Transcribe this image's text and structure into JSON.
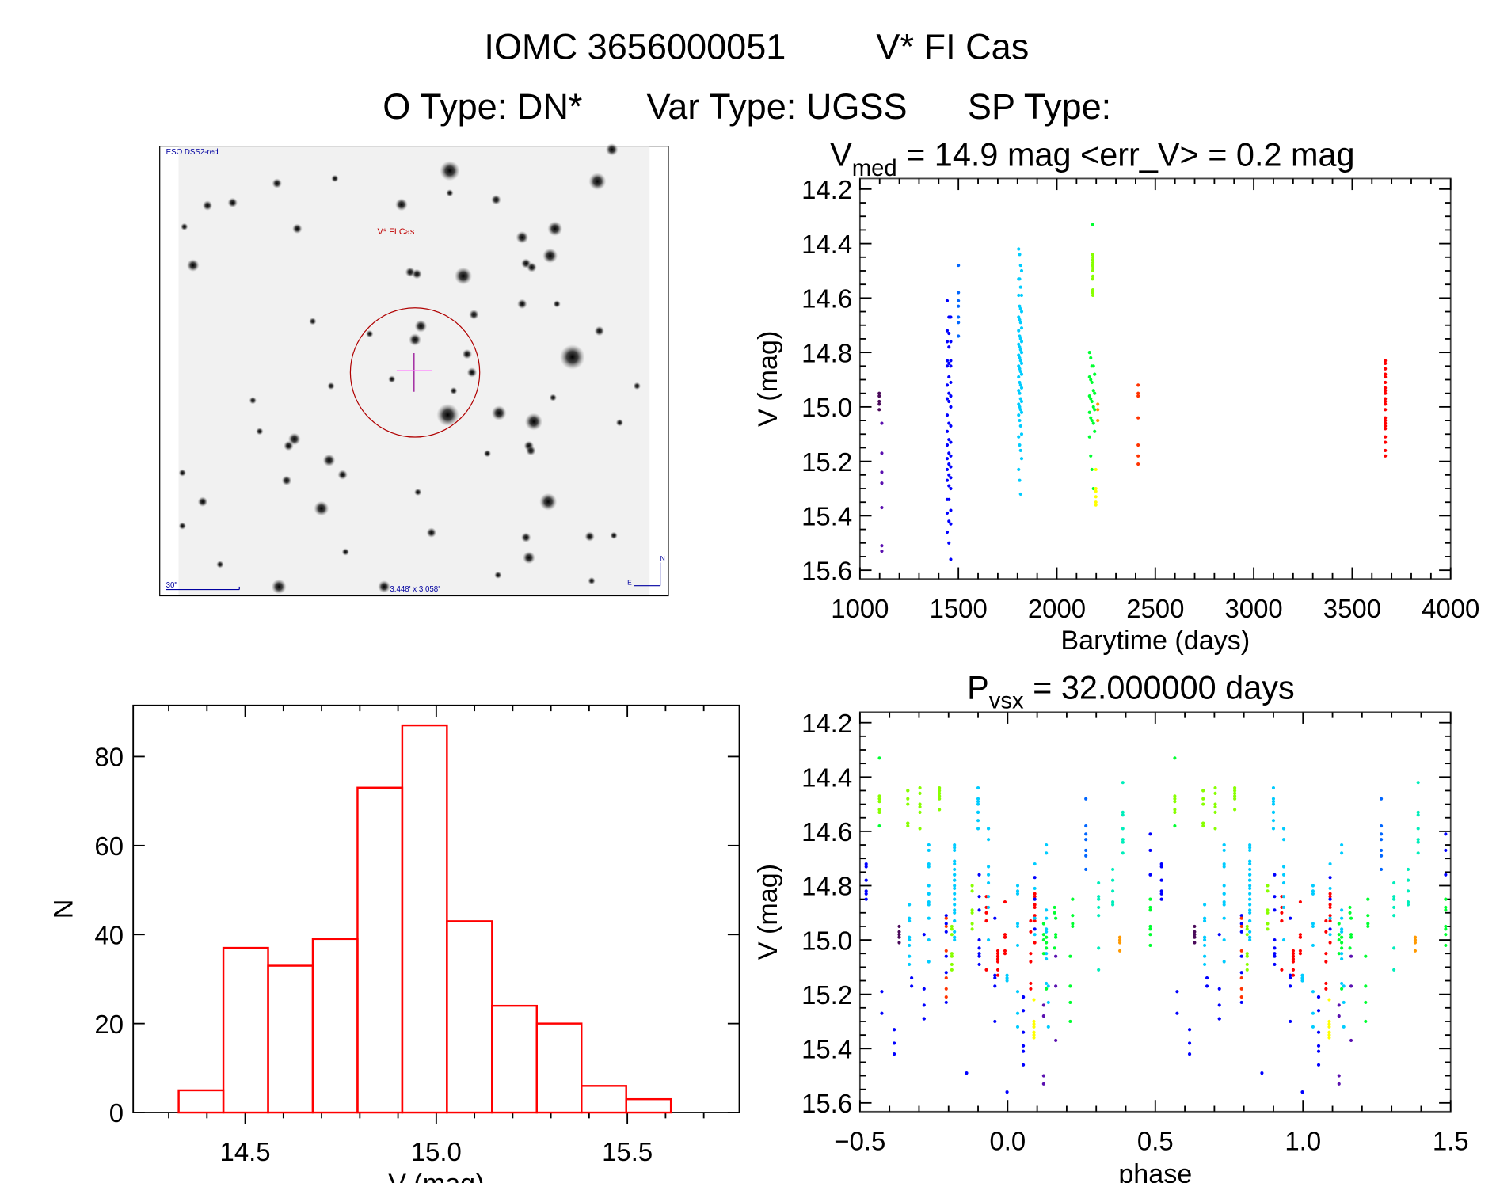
{
  "header": {
    "object_id": "IOMC 3656000051",
    "object_name": "V* FI Cas",
    "o_type": "O Type: DN*",
    "var_type": "Var Type: UGSS",
    "sp_type": "SP Type:"
  },
  "image_panel": {
    "survey_label": "ESO DSS2-red",
    "target_label": "V* FI Cas",
    "scale_label": "30\"",
    "field_size": "3.448' x 3.058'",
    "north_label": "N",
    "east_label": "E"
  },
  "palette": [
    "#4a0a5a",
    "#5a10b0",
    "#0000ff",
    "#0066ff",
    "#00ccff",
    "#00eebb",
    "#00ff30",
    "#88ff00",
    "#ffff00",
    "#ff9900",
    "#ff3300",
    "#ff0000"
  ],
  "chart_data": [
    {
      "id": "histogram",
      "type": "bar",
      "title": "",
      "xlabel": "V (mag)",
      "ylabel": "N",
      "xlim": [
        14.207,
        15.793
      ],
      "ylim": [
        0,
        91.5
      ],
      "bin_edges": [
        14.326,
        14.443,
        14.56,
        14.677,
        14.794,
        14.911,
        15.028,
        15.146,
        15.263,
        15.38,
        15.497,
        15.614
      ],
      "values": [
        5,
        37,
        33,
        39,
        73,
        87,
        43,
        24,
        20,
        6,
        3
      ],
      "bar_color": "#ff0000",
      "xticks": [
        14.5,
        15.0,
        15.5
      ],
      "xtick_labels": [
        "14.5",
        "15.0",
        "15.5"
      ],
      "yticks": [
        0,
        20,
        40,
        60,
        80
      ],
      "ytick_labels": [
        "0",
        "20",
        "40",
        "60",
        "80"
      ],
      "grid": false
    },
    {
      "id": "light-curve",
      "type": "scatter",
      "title_main": "V",
      "title_sub": "med",
      "title_rest": " = 14.9 mag <err_V> = 0.2 mag",
      "xlabel": "Barytime (days)",
      "ylabel": "V (mag)",
      "xlim": [
        1000,
        4000
      ],
      "ylim": [
        15.632,
        14.161
      ],
      "xticks": [
        1000,
        1500,
        2000,
        2500,
        3000,
        3500,
        4000
      ],
      "xtick_labels": [
        "1000",
        "1500",
        "2000",
        "2500",
        "3000",
        "3500",
        "4000"
      ],
      "yticks": [
        14.2,
        14.4,
        14.6,
        14.8,
        15.0,
        15.2,
        15.4,
        15.6
      ],
      "ytick_labels": [
        "14.2",
        "14.4",
        "14.6",
        "14.8",
        "15.0",
        "15.2",
        "15.4",
        "15.6"
      ],
      "grid": false,
      "groups": [
        {
          "color": 0,
          "t": [
            1098
          ],
          "V": [
            14.95,
            14.96,
            14.98,
            14.99,
            15.01
          ]
        },
        {
          "color": 1,
          "t": [
            1111
          ],
          "V": [
            15.06,
            15.17,
            15.24,
            15.28,
            15.37,
            15.51,
            15.53
          ]
        },
        {
          "color": 2,
          "t": [
            1443,
            1452,
            1461
          ],
          "V": [
            14.61,
            14.67,
            14.67,
            14.72,
            14.73,
            14.76,
            14.76,
            14.78,
            14.83,
            14.83,
            14.84,
            14.85,
            14.85,
            14.89,
            14.91,
            14.92,
            14.95,
            14.96,
            14.97,
            14.98,
            15.0,
            15.03,
            15.06,
            15.07,
            15.09,
            15.12,
            15.13,
            15.14,
            15.17,
            15.18,
            15.19,
            15.21,
            15.22,
            15.23,
            15.25,
            15.26,
            15.27,
            15.29,
            15.3,
            15.34,
            15.34,
            15.38,
            15.39,
            15.42,
            15.43,
            15.46,
            15.5,
            15.56
          ]
        },
        {
          "color": 3,
          "t": [
            1500
          ],
          "V": [
            14.48,
            14.58,
            14.61,
            14.63,
            14.67,
            14.69,
            14.74
          ]
        },
        {
          "color": 4,
          "t": [
            1806,
            1811,
            1816,
            1821
          ],
          "V": [
            14.42,
            14.44,
            14.48,
            14.5,
            14.53,
            14.53,
            14.56,
            14.59,
            14.59,
            14.63,
            14.64,
            14.65,
            14.67,
            14.68,
            14.69,
            14.71,
            14.72,
            14.74,
            14.75,
            14.76,
            14.77,
            14.78,
            14.79,
            14.8,
            14.81,
            14.82,
            14.83,
            14.84,
            14.85,
            14.86,
            14.87,
            14.88,
            14.89,
            14.91,
            14.92,
            14.93,
            14.94,
            14.95,
            14.97,
            14.98,
            14.99,
            15.0,
            15.01,
            15.02,
            15.03,
            15.05,
            15.07,
            15.1,
            15.11,
            15.14,
            15.16,
            15.19,
            15.23,
            15.27,
            15.32
          ]
        },
        {
          "color": 6,
          "t": [
            2182
          ],
          "V": [
            14.33
          ]
        },
        {
          "color": 7,
          "t": [
            2181,
            2183
          ],
          "V": [
            14.44,
            14.45,
            14.46,
            14.47,
            14.48,
            14.49,
            14.5,
            14.52,
            14.53,
            14.57,
            14.58,
            14.59
          ]
        },
        {
          "color": 6,
          "t": [
            2166,
            2172,
            2178,
            2186,
            2192
          ],
          "V": [
            14.8,
            14.82,
            14.85,
            14.85,
            14.88,
            14.89,
            14.9,
            14.91,
            14.94,
            14.95,
            14.96,
            14.97,
            14.98,
            15.0,
            15.01,
            15.02,
            15.04,
            15.05,
            15.06,
            15.09,
            15.11,
            15.18,
            15.23,
            15.3
          ]
        },
        {
          "color": 8,
          "t": [
            2198
          ],
          "V": [
            15.23,
            15.3,
            15.31,
            15.33,
            15.35,
            15.36
          ]
        },
        {
          "color": 9,
          "t": [
            2208
          ],
          "V": [
            14.99,
            15.01,
            15.05
          ]
        },
        {
          "color": 10,
          "t": [
            2413
          ],
          "V": [
            14.92,
            14.95,
            14.96,
            15.04,
            15.14,
            15.18,
            15.21
          ]
        },
        {
          "color": 11,
          "t": [
            3668
          ],
          "V": [
            14.83,
            14.84,
            14.86,
            14.88,
            14.89,
            14.91,
            14.93,
            14.94,
            14.95,
            14.97,
            14.98,
            14.99,
            15.01,
            15.04,
            15.05,
            15.06,
            15.07,
            15.08,
            15.11,
            15.13,
            15.16,
            15.18
          ]
        }
      ]
    },
    {
      "id": "phase-curve",
      "type": "scatter",
      "title_main": "P",
      "title_sub": "vsx",
      "title_rest": " = 32.000000 days",
      "period_days": 32.0,
      "xlabel": "phase",
      "ylabel": "V (mag)",
      "xlim": [
        -0.5,
        1.5
      ],
      "ylim": [
        15.632,
        14.161
      ],
      "xticks": [
        -0.5,
        0.0,
        0.5,
        1.0,
        1.5
      ],
      "xtick_labels": [
        "−0.5",
        "0.0",
        "0.5",
        "1.0",
        "1.5"
      ],
      "yticks": [
        14.2,
        14.4,
        14.6,
        14.8,
        15.0,
        15.2,
        15.4,
        15.6
      ],
      "ytick_labels": [
        "14.2",
        "14.4",
        "14.6",
        "14.8",
        "15.0",
        "15.2",
        "15.4",
        "15.6"
      ],
      "repeat_cycle": true,
      "grid": false,
      "groups": [
        {
          "color": 2,
          "phase": -0.479,
          "V": [
            14.72,
            14.73,
            14.78,
            14.82,
            14.83,
            14.85
          ]
        },
        {
          "color": 6,
          "phase": -0.434,
          "V": [
            14.33,
            14.58
          ]
        },
        {
          "color": 7,
          "phase": -0.434,
          "V": [
            14.47,
            14.48,
            14.49,
            14.52,
            14.53,
            14.53
          ]
        },
        {
          "color": 2,
          "phase": -0.426,
          "V": [
            15.19,
            15.27
          ]
        },
        {
          "color": 2,
          "phase": -0.384,
          "V": [
            15.33,
            15.38,
            15.42
          ]
        },
        {
          "color": 0,
          "phase": -0.367,
          "V": [
            14.95,
            14.97,
            14.98,
            14.99,
            15.01
          ]
        },
        {
          "color": 7,
          "phase": -0.338,
          "V": [
            14.45,
            14.45,
            14.48,
            14.5,
            14.57,
            14.57,
            14.58
          ]
        },
        {
          "color": 4,
          "phase": -0.333,
          "V": [
            14.87,
            14.92,
            14.93,
            14.99,
            15.0,
            15.02,
            15.06,
            15.09
          ]
        },
        {
          "color": 2,
          "phase": -0.325,
          "V": [
            15.14,
            15.17
          ]
        },
        {
          "color": 7,
          "phase": -0.297,
          "V": [
            14.44,
            14.46,
            14.5,
            14.51,
            14.53,
            14.59
          ]
        },
        {
          "color": 2,
          "phase": -0.283,
          "V": [
            14.98,
            15.18,
            15.24,
            15.29,
            15.29
          ]
        },
        {
          "color": 4,
          "phase": -0.267,
          "V": [
            14.65,
            14.65,
            14.67,
            14.72,
            14.73,
            14.8,
            14.83,
            14.83,
            14.86,
            14.87,
            14.92,
            15.0,
            15.08
          ]
        },
        {
          "color": 7,
          "phase": -0.231,
          "V": [
            14.44,
            14.45,
            14.46,
            14.47,
            14.48,
            14.52
          ]
        },
        {
          "color": 2,
          "phase": -0.208,
          "V": [
            14.91,
            14.94,
            14.97,
            15.06,
            15.12,
            15.23
          ]
        },
        {
          "color": 10,
          "phase": -0.208,
          "V": [
            14.92,
            14.95,
            15.04,
            15.14,
            15.18,
            15.21
          ]
        },
        {
          "color": 7,
          "phase": -0.189,
          "V": [
            14.95,
            14.96,
            14.98,
            15.05,
            15.06,
            15.09,
            15.11
          ]
        },
        {
          "color": 4,
          "phase": -0.18,
          "V": [
            14.65,
            14.66,
            14.67,
            14.71,
            14.72,
            14.74,
            14.76,
            14.76,
            14.78,
            14.78,
            14.8,
            14.81,
            14.83,
            14.85,
            14.87,
            14.89,
            14.9,
            14.93,
            14.93,
            14.97,
            14.99,
            15.0
          ]
        },
        {
          "color": 2,
          "phase": -0.139,
          "V": [
            15.49
          ]
        },
        {
          "color": 7,
          "phase": -0.12,
          "V": [
            14.8,
            14.82,
            14.89,
            14.9,
            14.94,
            14.96
          ]
        },
        {
          "color": 4,
          "phase": -0.1,
          "V": [
            14.44,
            14.48,
            14.49,
            14.5,
            14.53,
            14.53,
            14.56,
            14.59
          ]
        },
        {
          "color": 2,
          "phase": -0.096,
          "V": [
            14.76,
            14.84,
            14.89,
            15.0,
            15.03,
            15.05,
            15.06,
            15.09
          ]
        },
        {
          "color": 11,
          "phase": -0.072,
          "V": [
            14.84,
            14.88,
            14.9,
            14.93,
            14.93,
            15.11
          ]
        },
        {
          "color": 4,
          "phase": -0.065,
          "V": [
            14.59,
            14.59,
            14.63,
            14.73,
            14.76,
            14.79,
            14.84,
            14.88,
            15.0
          ]
        },
        {
          "color": 2,
          "phase": -0.043,
          "V": [
            14.92,
            15.13,
            15.14,
            15.17,
            15.3
          ]
        },
        {
          "color": 11,
          "phase": -0.033,
          "V": [
            15.04,
            15.05,
            15.06,
            15.07,
            15.08,
            15.11,
            15.13
          ]
        },
        {
          "color": 11,
          "phase": -0.009,
          "V": [
            14.86,
            14.98,
            14.99,
            14.99,
            15.04,
            15.05
          ]
        },
        {
          "color": 4,
          "phase": -0.002,
          "V": [
            15.13,
            15.14,
            15.15
          ]
        },
        {
          "color": 2,
          "phase": -0.002,
          "V": [
            15.56
          ]
        },
        {
          "color": 4,
          "phase": 0.034,
          "V": [
            14.8,
            14.82,
            14.83,
            14.94,
            14.95,
            15.02,
            15.19,
            15.27,
            15.32
          ]
        },
        {
          "color": 2,
          "phase": 0.053,
          "V": [
            15.21,
            15.21,
            15.26,
            15.34,
            15.39,
            15.41,
            15.46
          ]
        },
        {
          "color": 11,
          "phase": 0.078,
          "V": [
            14.93,
            14.97,
            15.05,
            15.08,
            15.16,
            15.18
          ]
        },
        {
          "color": 8,
          "phase": 0.089,
          "V": [
            15.22,
            15.3,
            15.31,
            15.32,
            15.34,
            15.35,
            15.36
          ]
        },
        {
          "color": 11,
          "phase": 0.092,
          "V": [
            14.83,
            14.84,
            14.87,
            14.88,
            14.91,
            14.93,
            15.01
          ]
        },
        {
          "color": 4,
          "phase": 0.092,
          "V": [
            14.72,
            14.81,
            14.92,
            14.98
          ]
        },
        {
          "color": 2,
          "phase": 0.092,
          "V": [
            14.77,
            14.85,
            14.96
          ]
        },
        {
          "color": 6,
          "phase": 0.122,
          "V": [
            14.94,
            14.98,
            15.0,
            15.05
          ]
        },
        {
          "color": 1,
          "phase": 0.122,
          "V": [
            15.24,
            15.28,
            15.5,
            15.53
          ]
        },
        {
          "color": 4,
          "phase": 0.131,
          "V": [
            14.65,
            14.68,
            14.89,
            14.92,
            14.96,
            14.97,
            15.05,
            15.07,
            15.16
          ]
        },
        {
          "color": 6,
          "phase": 0.131,
          "V": [
            14.99,
            15.01,
            15.03,
            15.18
          ]
        },
        {
          "color": 4,
          "phase": 0.138,
          "V": [
            15.17,
            15.23,
            15.32
          ]
        },
        {
          "color": 6,
          "phase": 0.159,
          "V": [
            14.88,
            14.9,
            15.03
          ]
        },
        {
          "color": 6,
          "phase": 0.163,
          "V": [
            14.92,
            14.98,
            14.99
          ]
        },
        {
          "color": 1,
          "phase": 0.163,
          "V": [
            15.06,
            15.17,
            15.37
          ]
        },
        {
          "color": 6,
          "phase": 0.212,
          "V": [
            15.06,
            15.17,
            15.23,
            15.3
          ]
        },
        {
          "color": 6,
          "phase": 0.22,
          "V": [
            14.85,
            14.91,
            14.94,
            14.95
          ]
        },
        {
          "color": 3,
          "phase": 0.265,
          "V": [
            14.48,
            14.58,
            14.61,
            14.63,
            14.67,
            14.69,
            14.74
          ]
        },
        {
          "color": 5,
          "phase": 0.308,
          "V": [
            14.79,
            14.84,
            14.85,
            14.88,
            14.91,
            15.03,
            15.11
          ]
        },
        {
          "color": 5,
          "phase": 0.356,
          "V": [
            14.74,
            14.78,
            14.82,
            14.86,
            14.87
          ]
        },
        {
          "color": 9,
          "phase": 0.38,
          "V": [
            14.99,
            15.0,
            15.01,
            15.04
          ]
        },
        {
          "color": 5,
          "phase": 0.39,
          "V": [
            14.42,
            14.53,
            14.54,
            14.59,
            14.63,
            14.64,
            14.68
          ]
        },
        {
          "color": 2,
          "phase": 0.483,
          "V": [
            14.61,
            14.67,
            14.76
          ]
        },
        {
          "color": 6,
          "phase": 0.483,
          "V": [
            14.85,
            14.88,
            14.89,
            14.95,
            14.96,
            14.98,
            15.02
          ]
        }
      ]
    }
  ]
}
